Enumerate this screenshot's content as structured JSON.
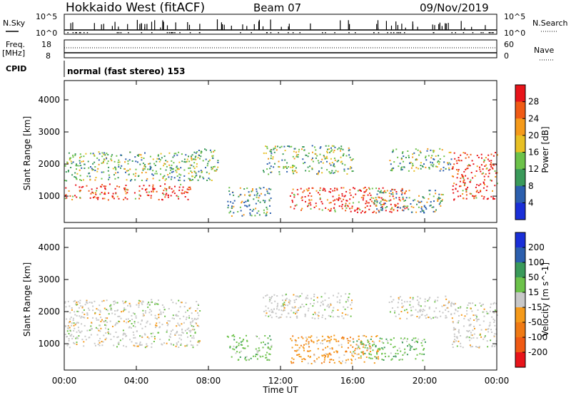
{
  "header": {
    "station": "Hokkaido West (fitACF)",
    "beam": "Beam 07",
    "date": "09/Nov/2019"
  },
  "sky_panel": {
    "left_label": "N.Sky",
    "right_label": "N.Search",
    "ticks_left": [
      "10^5",
      "10^0"
    ],
    "ticks_right": [
      "10^5",
      "10^0"
    ]
  },
  "freq_panel": {
    "left_label_1": "Freq.",
    "left_label_2": "[MHz]",
    "right_label": "Nave",
    "ticks_left": [
      "18",
      "8"
    ],
    "ticks_right": [
      "60",
      "0"
    ]
  },
  "cpid_panel": {
    "left_label": "CPID",
    "program": "normal (fast stereo) 153"
  },
  "power_colorbar": {
    "label": "Power [dB]",
    "ticks": [
      "28",
      "24",
      "20",
      "16",
      "12",
      "8",
      "4"
    ],
    "colors": [
      "#e8141a",
      "#f05a14",
      "#f59a1a",
      "#e8c024",
      "#6cc24a",
      "#3a9a5a",
      "#2c5fae",
      "#1a2fd8"
    ]
  },
  "velocity_colorbar": {
    "label": "Velocity [m s^-1]",
    "ticks": [
      "200",
      "100",
      "50",
      "15",
      "-15",
      "-50",
      "-100",
      "-200"
    ],
    "colors": [
      "#1a2fd8",
      "#2c5fae",
      "#3a9a5a",
      "#6cc24a",
      "#c8c8c8",
      "#f59a1a",
      "#f07a14",
      "#f05a14",
      "#e8141a"
    ]
  },
  "chart_data": [
    {
      "type": "heatmap",
      "title": "Power",
      "xlabel": "Time UT",
      "ylabel": "Slant Range [km]",
      "x_ticks": [
        "00:00",
        "04:00",
        "08:00",
        "12:00",
        "16:00",
        "20:00",
        "00:00"
      ],
      "y_ticks": [
        "1000",
        "2000",
        "3000",
        "4000"
      ],
      "xlim_hours": [
        0,
        24
      ],
      "ylim_km": [
        180,
        4600
      ],
      "regions": [
        {
          "t": [
            0.0,
            7.0
          ],
          "r": [
            900,
            1400
          ],
          "level": "high"
        },
        {
          "t": [
            0.0,
            7.5
          ],
          "r": [
            1500,
            2400
          ],
          "level": "mid"
        },
        {
          "t": [
            7.0,
            8.5
          ],
          "r": [
            1500,
            2500
          ],
          "level": "mid"
        },
        {
          "t": [
            9.0,
            11.5
          ],
          "r": [
            400,
            1300
          ],
          "level": "low"
        },
        {
          "t": [
            11.0,
            16.0
          ],
          "r": [
            1700,
            2600
          ],
          "level": "mid"
        },
        {
          "t": [
            12.5,
            19.0
          ],
          "r": [
            500,
            1300
          ],
          "level": "high"
        },
        {
          "t": [
            17.0,
            21.0
          ],
          "r": [
            500,
            1200
          ],
          "level": "low"
        },
        {
          "t": [
            18.0,
            21.5
          ],
          "r": [
            1800,
            2500
          ],
          "level": "mid"
        },
        {
          "t": [
            21.5,
            24.0
          ],
          "r": [
            900,
            2400
          ],
          "level": "high"
        }
      ]
    },
    {
      "type": "heatmap",
      "title": "Velocity",
      "xlabel": "Time UT",
      "ylabel": "Slant Range [km]",
      "x_ticks": [
        "00:00",
        "04:00",
        "08:00",
        "12:00",
        "16:00",
        "20:00",
        "00:00"
      ],
      "y_ticks": [
        "1000",
        "2000",
        "3000",
        "4000"
      ],
      "xlim_hours": [
        0,
        24
      ],
      "ylim_km": [
        180,
        4600
      ],
      "regions": [
        {
          "t": [
            0.0,
            7.5
          ],
          "r": [
            900,
            2400
          ],
          "v": "-15..15"
        },
        {
          "t": [
            9.0,
            11.5
          ],
          "r": [
            500,
            1300
          ],
          "v": "15..50"
        },
        {
          "t": [
            11.0,
            16.0
          ],
          "r": [
            1800,
            2600
          ],
          "v": "-15..15"
        },
        {
          "t": [
            12.5,
            17.5
          ],
          "r": [
            400,
            1300
          ],
          "v": "-50..-15"
        },
        {
          "t": [
            16.0,
            20.0
          ],
          "r": [
            500,
            1200
          ],
          "v": "15..50"
        },
        {
          "t": [
            18.0,
            21.5
          ],
          "r": [
            1800,
            2500
          ],
          "v": "-15..15"
        },
        {
          "t": [
            21.5,
            24.0
          ],
          "r": [
            900,
            2300
          ],
          "v": "-15..15"
        }
      ]
    }
  ]
}
